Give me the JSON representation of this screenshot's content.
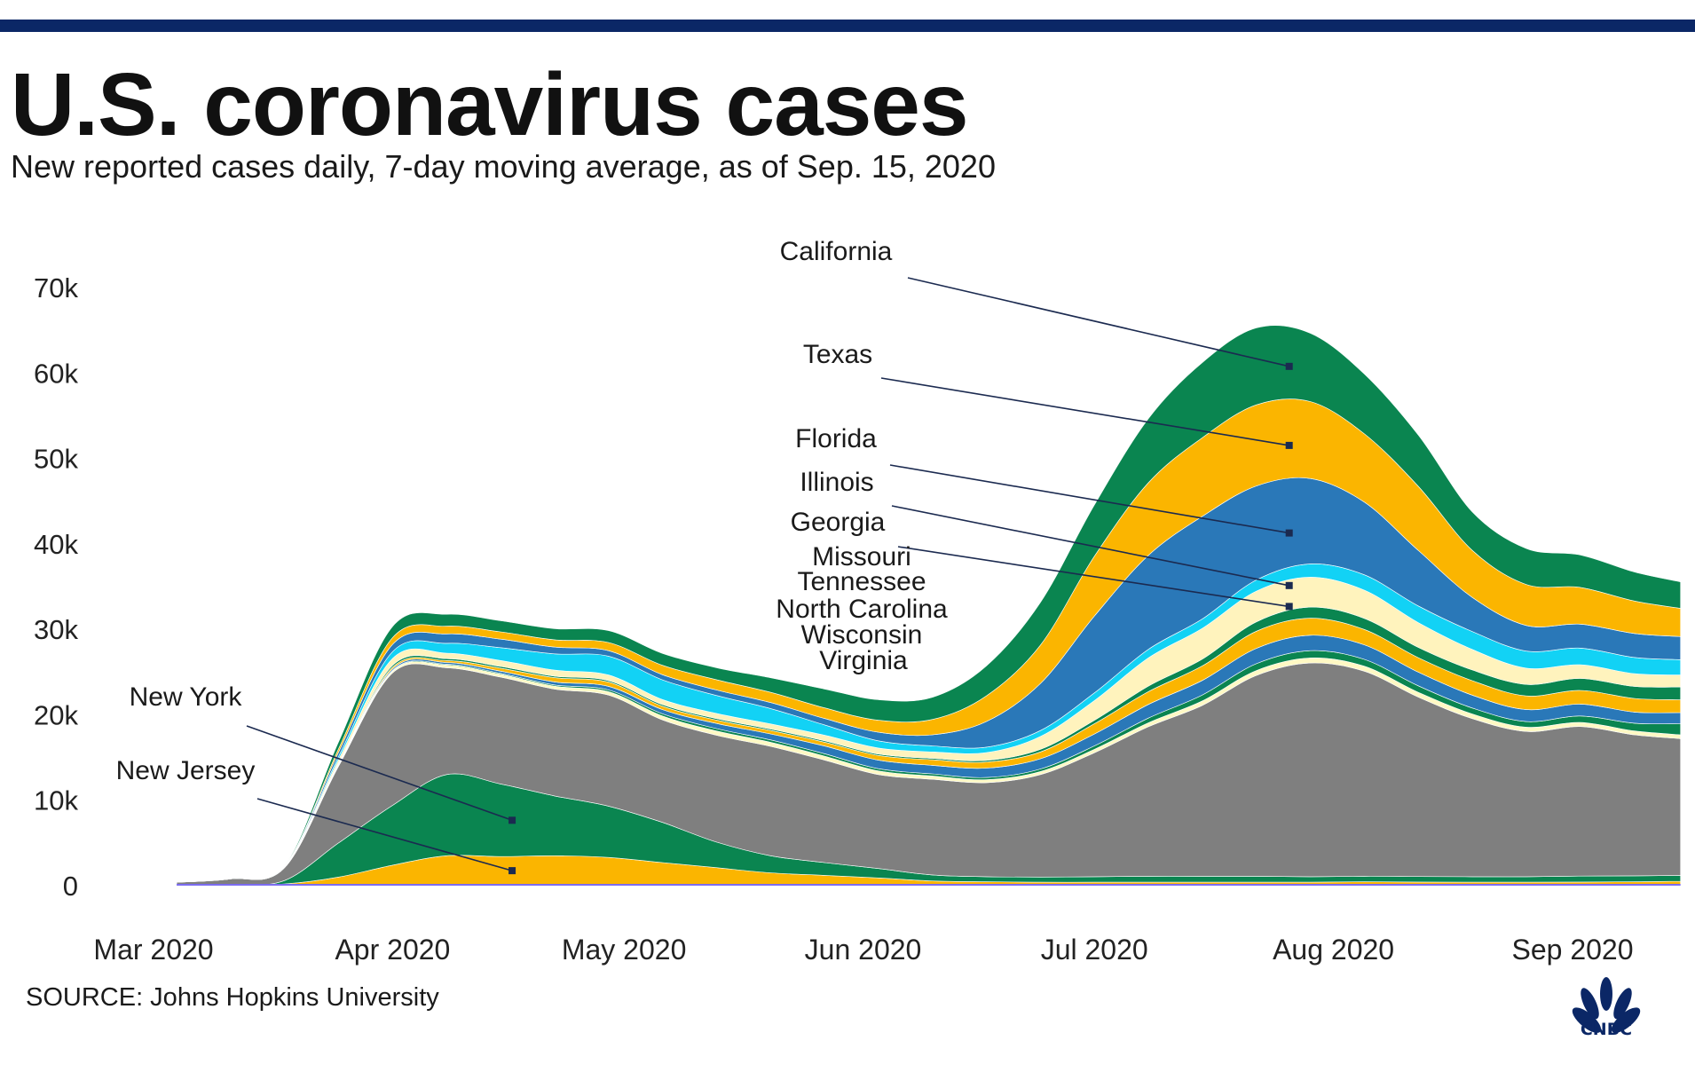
{
  "header": {
    "title": "U.S. coronavirus cases",
    "subtitle": "New reported cases daily, 7-day moving average, as of Sep. 15, 2020"
  },
  "footer": {
    "source": "SOURCE: Johns Hopkins University",
    "logo_text": "CNBC"
  },
  "chart_data": {
    "type": "area",
    "stacked": true,
    "title": "U.S. coronavirus cases",
    "subtitle": "New reported cases daily, 7-day moving average, as of Sep. 15, 2020",
    "x": [
      "2020-03-04",
      "2020-03-11",
      "2020-03-18",
      "2020-03-25",
      "2020-04-01",
      "2020-04-08",
      "2020-04-15",
      "2020-04-22",
      "2020-04-29",
      "2020-05-06",
      "2020-05-13",
      "2020-05-20",
      "2020-05-27",
      "2020-06-03",
      "2020-06-10",
      "2020-06-17",
      "2020-06-24",
      "2020-07-01",
      "2020-07-08",
      "2020-07-15",
      "2020-07-22",
      "2020-07-29",
      "2020-08-05",
      "2020-08-12",
      "2020-08-19",
      "2020-08-26",
      "2020-09-02",
      "2020-09-09",
      "2020-09-15"
    ],
    "x_ticks": [
      "Mar 2020",
      "Apr 2020",
      "May 2020",
      "Jun 2020",
      "Jul 2020",
      "Aug 2020",
      "Sep 2020"
    ],
    "y_ticks": [
      "0",
      "10k",
      "20k",
      "30k",
      "40k",
      "50k",
      "60k",
      "70k"
    ],
    "ylim": [
      0,
      70000
    ],
    "series": [
      {
        "name": "New Jersey",
        "color": "#fbb500",
        "values": [
          0,
          0,
          100,
          900,
          2300,
          3400,
          3300,
          3400,
          3200,
          2600,
          2000,
          1400,
          1100,
          800,
          450,
          350,
          300,
          300,
          300,
          300,
          300,
          300,
          350,
          320,
          300,
          300,
          320,
          350,
          400
        ]
      },
      {
        "name": "New York",
        "color": "#0a8550",
        "values": [
          0,
          0,
          400,
          4000,
          7000,
          9500,
          8500,
          7000,
          6000,
          4700,
          3000,
          2000,
          1500,
          1100,
          700,
          600,
          600,
          650,
          700,
          700,
          700,
          650,
          650,
          650,
          650,
          650,
          700,
          700,
          700
        ]
      },
      {
        "name": "",
        "color": "#7f7f7f",
        "values": [
          300,
          700,
          1500,
          9000,
          15500,
          12500,
          12500,
          12500,
          13000,
          12000,
          12500,
          12800,
          12000,
          11000,
          11200,
          11000,
          12000,
          14500,
          17500,
          20000,
          23500,
          25000,
          24000,
          21000,
          18500,
          17000,
          17500,
          16500,
          16000
        ]
      },
      {
        "name": "Virginia",
        "color": "#fff9c4",
        "values": [
          0,
          0,
          5,
          40,
          200,
          320,
          330,
          340,
          400,
          450,
          500,
          480,
          460,
          420,
          380,
          350,
          350,
          400,
          450,
          520,
          570,
          600,
          580,
          560,
          540,
          500,
          480,
          460,
          450
        ]
      },
      {
        "name": "Wisconsin",
        "color": "#0a8550",
        "values": [
          0,
          0,
          5,
          40,
          80,
          100,
          120,
          150,
          200,
          250,
          280,
          280,
          280,
          260,
          250,
          260,
          300,
          400,
          550,
          700,
          800,
          850,
          800,
          750,
          700,
          650,
          750,
          900,
          1300
        ]
      },
      {
        "name": "North Carolina",
        "color": "#2a78b8",
        "values": [
          0,
          0,
          10,
          90,
          180,
          200,
          250,
          350,
          420,
          500,
          600,
          700,
          900,
          1000,
          1000,
          1100,
          1200,
          1400,
          1600,
          1700,
          1800,
          1800,
          1700,
          1600,
          1500,
          1400,
          1400,
          1300,
          1300
        ]
      },
      {
        "name": "Tennessee",
        "color": "#fbb500",
        "values": [
          0,
          0,
          10,
          100,
          200,
          220,
          350,
          500,
          500,
          400,
          400,
          400,
          450,
          550,
          650,
          700,
          800,
          1200,
          1500,
          1700,
          2000,
          2000,
          1800,
          1700,
          1700,
          1600,
          1600,
          1600,
          1500
        ]
      },
      {
        "name": "Missouri",
        "color": "#0a8550",
        "values": [
          0,
          0,
          10,
          120,
          220,
          220,
          200,
          180,
          180,
          180,
          170,
          170,
          170,
          170,
          170,
          200,
          300,
          400,
          650,
          800,
          1100,
          1300,
          1300,
          1200,
          1250,
          1350,
          1400,
          1400,
          1500
        ]
      },
      {
        "name": "Georgia",
        "color": "#fff3bd",
        "values": [
          0,
          0,
          30,
          400,
          800,
          650,
          700,
          700,
          650,
          600,
          600,
          600,
          650,
          700,
          750,
          900,
          1500,
          2300,
          3300,
          3600,
          3600,
          3500,
          3300,
          2900,
          2400,
          1900,
          1600,
          1500,
          1400
        ]
      },
      {
        "name": "Illinois",
        "color": "#12d2f5",
        "values": [
          0,
          0,
          25,
          350,
          800,
          1150,
          1500,
          1900,
          2200,
          2300,
          2100,
          1800,
          1200,
          850,
          700,
          650,
          700,
          900,
          1000,
          1100,
          1300,
          1550,
          1800,
          1950,
          2100,
          2000,
          1950,
          1900,
          1800
        ]
      },
      {
        "name": "Florida",
        "color": "#2a78b8",
        "values": [
          0,
          0,
          50,
          500,
          850,
          1100,
          1000,
          800,
          650,
          600,
          650,
          700,
          750,
          1000,
          1300,
          3000,
          5500,
          9000,
          11000,
          12000,
          11000,
          10000,
          8500,
          6500,
          4000,
          3000,
          2800,
          2800,
          2700
        ]
      },
      {
        "name": "Texas",
        "color": "#fbb500",
        "values": [
          0,
          0,
          30,
          400,
          800,
          900,
          850,
          850,
          950,
          1100,
          1200,
          1200,
          1250,
          1400,
          1800,
          3000,
          4500,
          7000,
          8500,
          9200,
          9500,
          9000,
          8000,
          7500,
          5500,
          4800,
          4300,
          3800,
          3300
        ]
      },
      {
        "name": "California",
        "color": "#0a8550",
        "values": [
          0,
          0,
          80,
          800,
          1300,
          1400,
          1300,
          1300,
          1400,
          1400,
          1400,
          1700,
          2200,
          2400,
          2600,
          3500,
          5000,
          6000,
          7500,
          8800,
          9000,
          8000,
          7000,
          6000,
          4500,
          4200,
          3800,
          3400,
          3100
        ]
      }
    ]
  },
  "annotations": [
    {
      "label": "California",
      "series": "California"
    },
    {
      "label": "Texas",
      "series": "Texas"
    },
    {
      "label": "Florida",
      "series": "Florida"
    },
    {
      "label": "Illinois",
      "series": "Illinois"
    },
    {
      "label": "Georgia",
      "series": "Georgia"
    },
    {
      "label": "Missouri",
      "series": "Missouri"
    },
    {
      "label": "Tennessee",
      "series": "Tennessee"
    },
    {
      "label": "North Carolina",
      "series": "North Carolina"
    },
    {
      "label": "Wisconsin",
      "series": "Wisconsin"
    },
    {
      "label": "Virginia",
      "series": "Virginia"
    },
    {
      "label": "New York",
      "series": "New York"
    },
    {
      "label": "New Jersey",
      "series": "New Jersey"
    }
  ]
}
